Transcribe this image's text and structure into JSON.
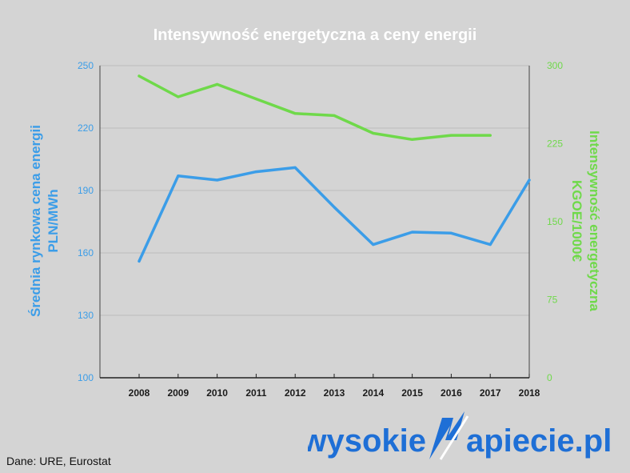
{
  "colors": {
    "background": "#d4d4d4",
    "left_series": "#3b9de8",
    "right_series": "#6fd94a",
    "logo": "#1e6fd6",
    "gridline": "#bbbbbb"
  },
  "source_note": "Dane: URE, Eurostat",
  "logo": {
    "left_text": "wysokie",
    "right_text": "apiecie.pl",
    "icon": "lightning-n-logo-icon"
  },
  "chart_data": {
    "type": "line",
    "title": "Intensywność energetyczna a ceny energii",
    "xlabel": "",
    "ylabel_left_line1": "Średnia rynkowa cena energii",
    "ylabel_left_line2": "PLN/MWh",
    "ylabel_right_line1": "Intensywność energetyczna",
    "ylabel_right_line2": "KGOE/1000€",
    "categories": [
      "2008",
      "2009",
      "2010",
      "2011",
      "2012",
      "2013",
      "2014",
      "2015",
      "2016",
      "2017",
      "2018"
    ],
    "y_left": {
      "lim": [
        100,
        250
      ],
      "ticks": [
        "100",
        "130",
        "160",
        "190",
        "220",
        "250"
      ]
    },
    "y_right": {
      "lim": [
        0,
        300
      ],
      "ticks": [
        "0",
        "75",
        "150",
        "225",
        "300"
      ]
    },
    "grid": true,
    "series": [
      {
        "axis": "left",
        "color": "#3b9de8",
        "values": [
          156,
          197,
          195,
          199,
          201,
          182,
          164,
          170,
          169.5,
          164,
          195
        ]
      },
      {
        "axis": "right",
        "color": "#6fd94a",
        "values": [
          290,
          270,
          282,
          268,
          254,
          252,
          235,
          229,
          233,
          233,
          null
        ]
      }
    ]
  }
}
